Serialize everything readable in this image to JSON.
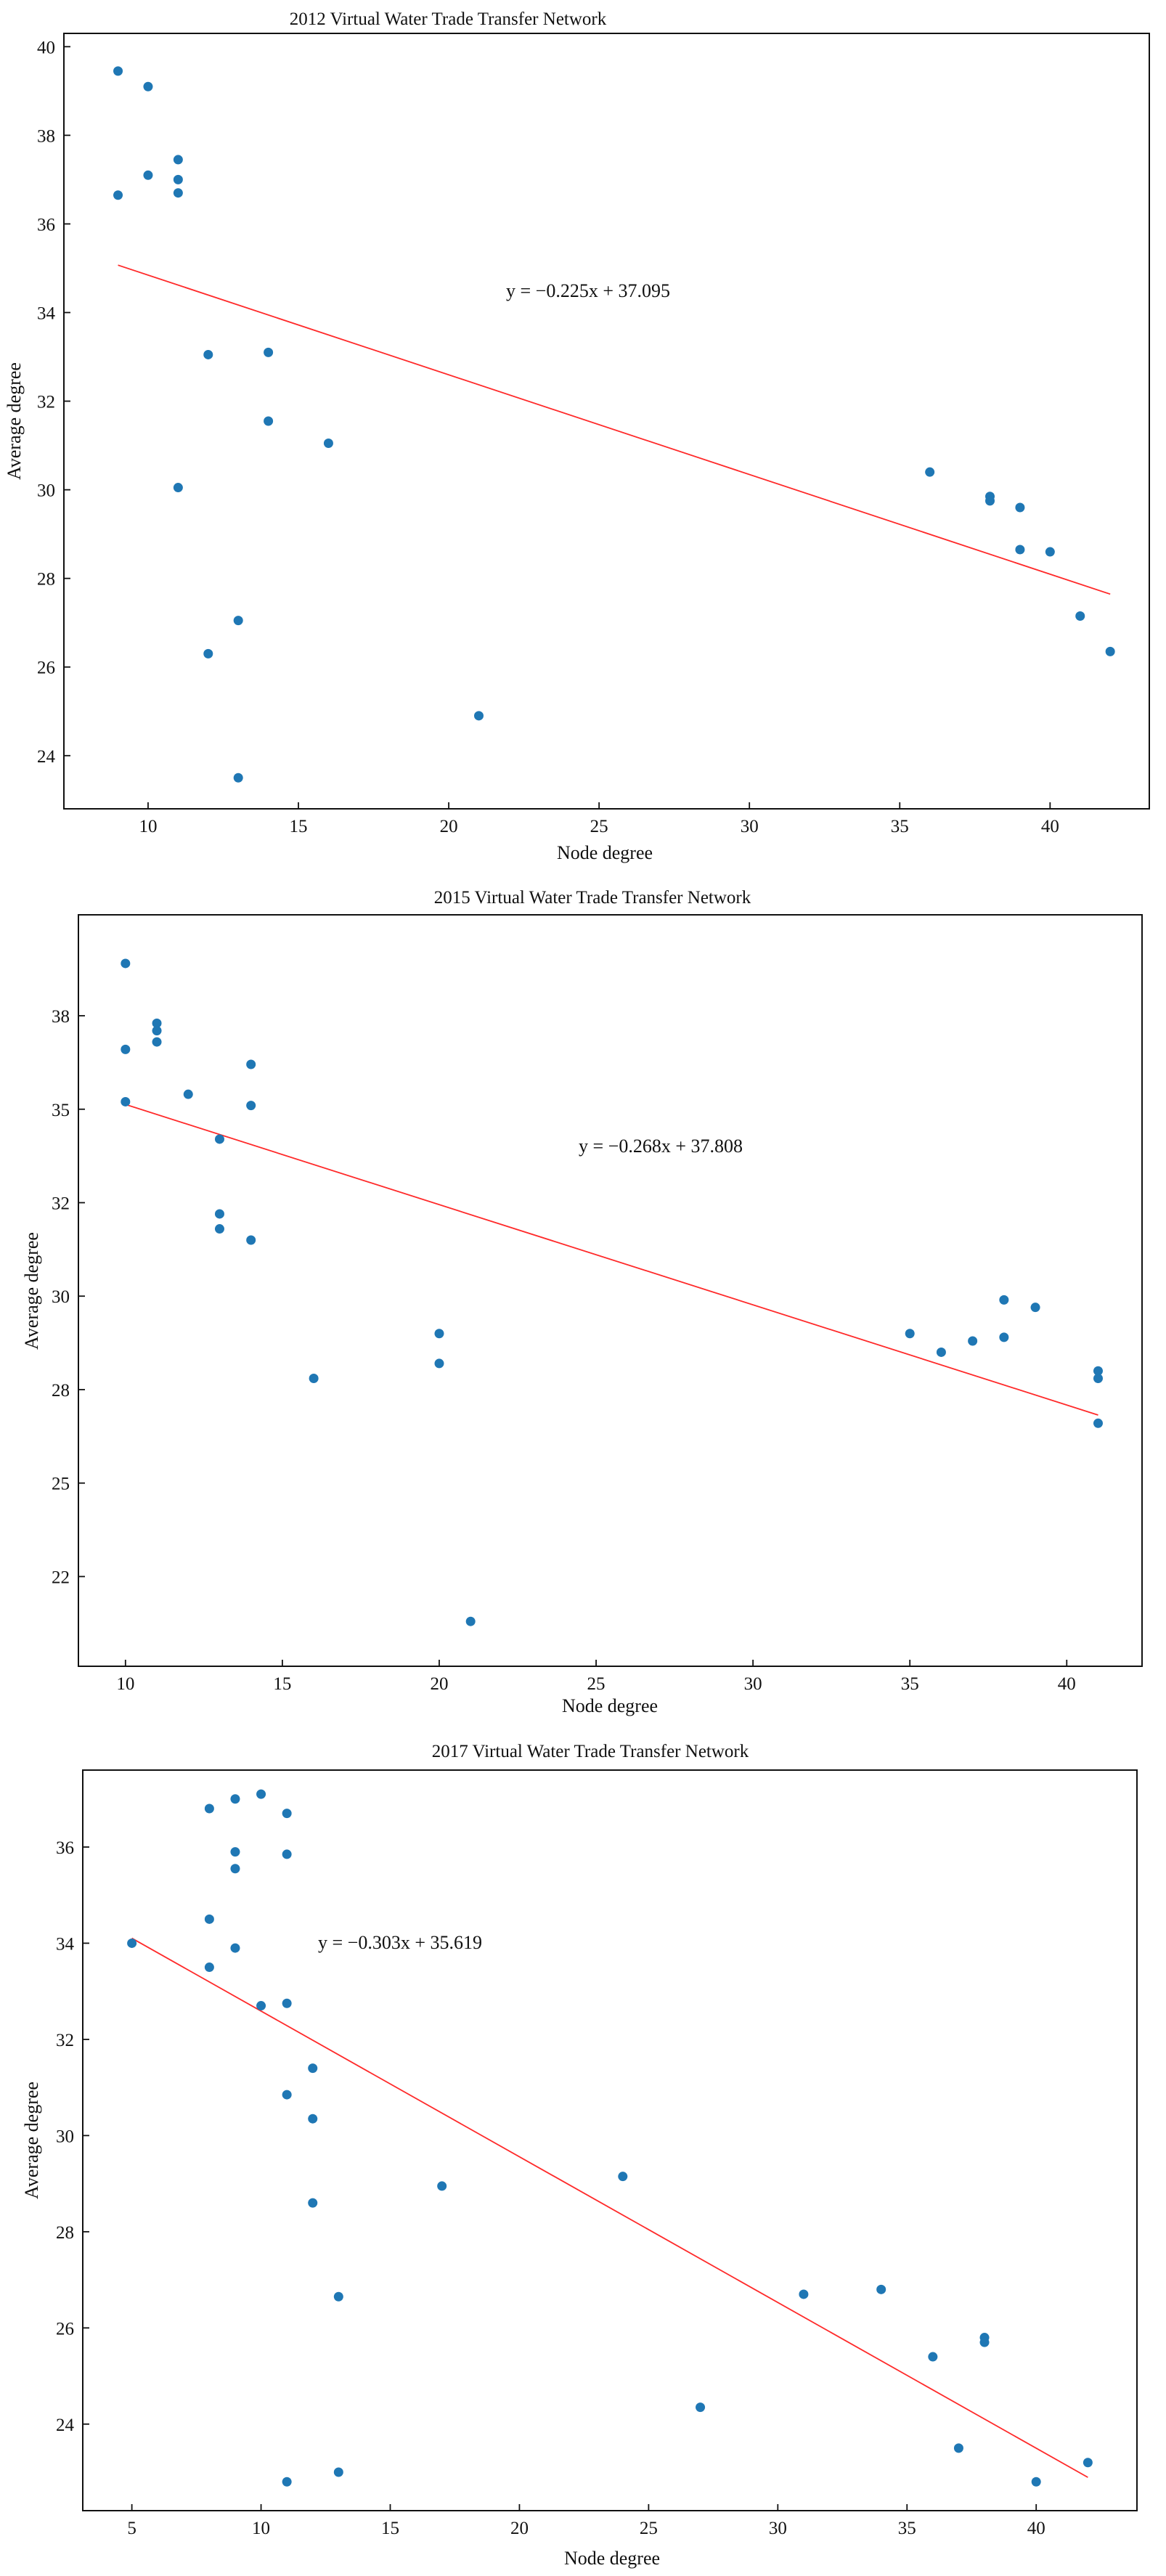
{
  "chart_data": [
    {
      "type": "scatter",
      "title": "2012 Virtual Water Trade Transfer Network",
      "xlabel": "Node degree",
      "ylabel": "Average degree",
      "xlim": [
        7.2,
        43.3
      ],
      "ylim": [
        22.8,
        40.3
      ],
      "xticks": [
        10,
        15,
        20,
        25,
        30,
        35,
        40
      ],
      "yticks": [
        24,
        26,
        28,
        30,
        32,
        34,
        36,
        38,
        40
      ],
      "equation": "y = −0.225x + 37.095",
      "fit": {
        "slope": -0.225,
        "intercept": 37.095,
        "x_range": [
          9,
          42
        ]
      },
      "points": [
        [
          9,
          39.45
        ],
        [
          9,
          36.65
        ],
        [
          10,
          39.1
        ],
        [
          10,
          37.1
        ],
        [
          11,
          37.45
        ],
        [
          11,
          37.0
        ],
        [
          11,
          36.7
        ],
        [
          11,
          30.05
        ],
        [
          12,
          33.05
        ],
        [
          12,
          26.3
        ],
        [
          13,
          27.05
        ],
        [
          13,
          23.5
        ],
        [
          14,
          33.1
        ],
        [
          14,
          31.55
        ],
        [
          16,
          31.05
        ],
        [
          21,
          24.9
        ],
        [
          36,
          30.4
        ],
        [
          38,
          29.85
        ],
        [
          38,
          29.75
        ],
        [
          39,
          29.6
        ],
        [
          39,
          28.65
        ],
        [
          40,
          28.6
        ],
        [
          41,
          27.15
        ],
        [
          42,
          26.35
        ]
      ]
    },
    {
      "type": "scatter",
      "title": "2015 Virtual Water Trade Transfer Network",
      "xlabel": "Node degree",
      "ylabel": "Average degree",
      "xlim": [
        8.5,
        42.4
      ],
      "ylim": [
        20.1,
        40.2
      ],
      "xticks": [
        10,
        15,
        20,
        25,
        30,
        35,
        40
      ],
      "yticks": [
        22,
        25,
        28,
        30,
        32,
        35,
        38
      ],
      "ytick_values": [
        22.5,
        25.0,
        27.5,
        30.0,
        32.5,
        35.0,
        37.5
      ],
      "equation": "y = −0.268x + 37.808",
      "fit": {
        "slope": -0.268,
        "intercept": 37.808,
        "x_range": [
          10,
          41
        ]
      },
      "points": [
        [
          10,
          38.9
        ],
        [
          10,
          36.6
        ],
        [
          10,
          35.2
        ],
        [
          11,
          37.3
        ],
        [
          11,
          37.1
        ],
        [
          11,
          36.8
        ],
        [
          12,
          35.4
        ],
        [
          13,
          34.2
        ],
        [
          13,
          32.2
        ],
        [
          13,
          31.8
        ],
        [
          14,
          36.2
        ],
        [
          14,
          35.1
        ],
        [
          14,
          31.5
        ],
        [
          16,
          27.8
        ],
        [
          20,
          29.0
        ],
        [
          20,
          28.2
        ],
        [
          21,
          21.3
        ],
        [
          35,
          29.0
        ],
        [
          36,
          28.5
        ],
        [
          37,
          28.8
        ],
        [
          38,
          29.9
        ],
        [
          38,
          28.9
        ],
        [
          39,
          29.7
        ],
        [
          41,
          28.0
        ],
        [
          41,
          27.8
        ],
        [
          41,
          26.6
        ]
      ]
    },
    {
      "type": "scatter",
      "title": "2017 Virtual Water Trade Transfer Network",
      "xlabel": "Node degree",
      "ylabel": "Average degree",
      "xlim": [
        3.1,
        43.9
      ],
      "ylim": [
        22.2,
        37.6
      ],
      "xticks": [
        5,
        10,
        15,
        20,
        25,
        30,
        35,
        40
      ],
      "yticks": [
        24,
        26,
        28,
        30,
        32,
        34,
        36
      ],
      "equation": "y = −0.303x + 35.619",
      "fit": {
        "slope": -0.303,
        "intercept": 35.619,
        "x_range": [
          5,
          42
        ]
      },
      "points": [
        [
          5,
          34.0
        ],
        [
          8,
          36.8
        ],
        [
          8,
          34.5
        ],
        [
          8,
          33.5
        ],
        [
          9,
          37.0
        ],
        [
          9,
          35.9
        ],
        [
          9,
          35.55
        ],
        [
          9,
          33.9
        ],
        [
          10,
          37.1
        ],
        [
          10,
          32.7
        ],
        [
          11,
          36.7
        ],
        [
          11,
          35.85
        ],
        [
          11,
          32.75
        ],
        [
          11,
          30.85
        ],
        [
          11,
          22.8
        ],
        [
          12,
          31.4
        ],
        [
          12,
          30.35
        ],
        [
          12,
          28.6
        ],
        [
          13,
          26.65
        ],
        [
          13,
          23.0
        ],
        [
          17,
          28.95
        ],
        [
          24,
          29.15
        ],
        [
          27,
          24.35
        ],
        [
          31,
          26.7
        ],
        [
          34,
          26.8
        ],
        [
          36,
          25.4
        ],
        [
          37,
          23.5
        ],
        [
          38,
          25.8
        ],
        [
          38,
          25.7
        ],
        [
          40,
          22.8
        ],
        [
          42,
          23.2
        ]
      ]
    }
  ]
}
